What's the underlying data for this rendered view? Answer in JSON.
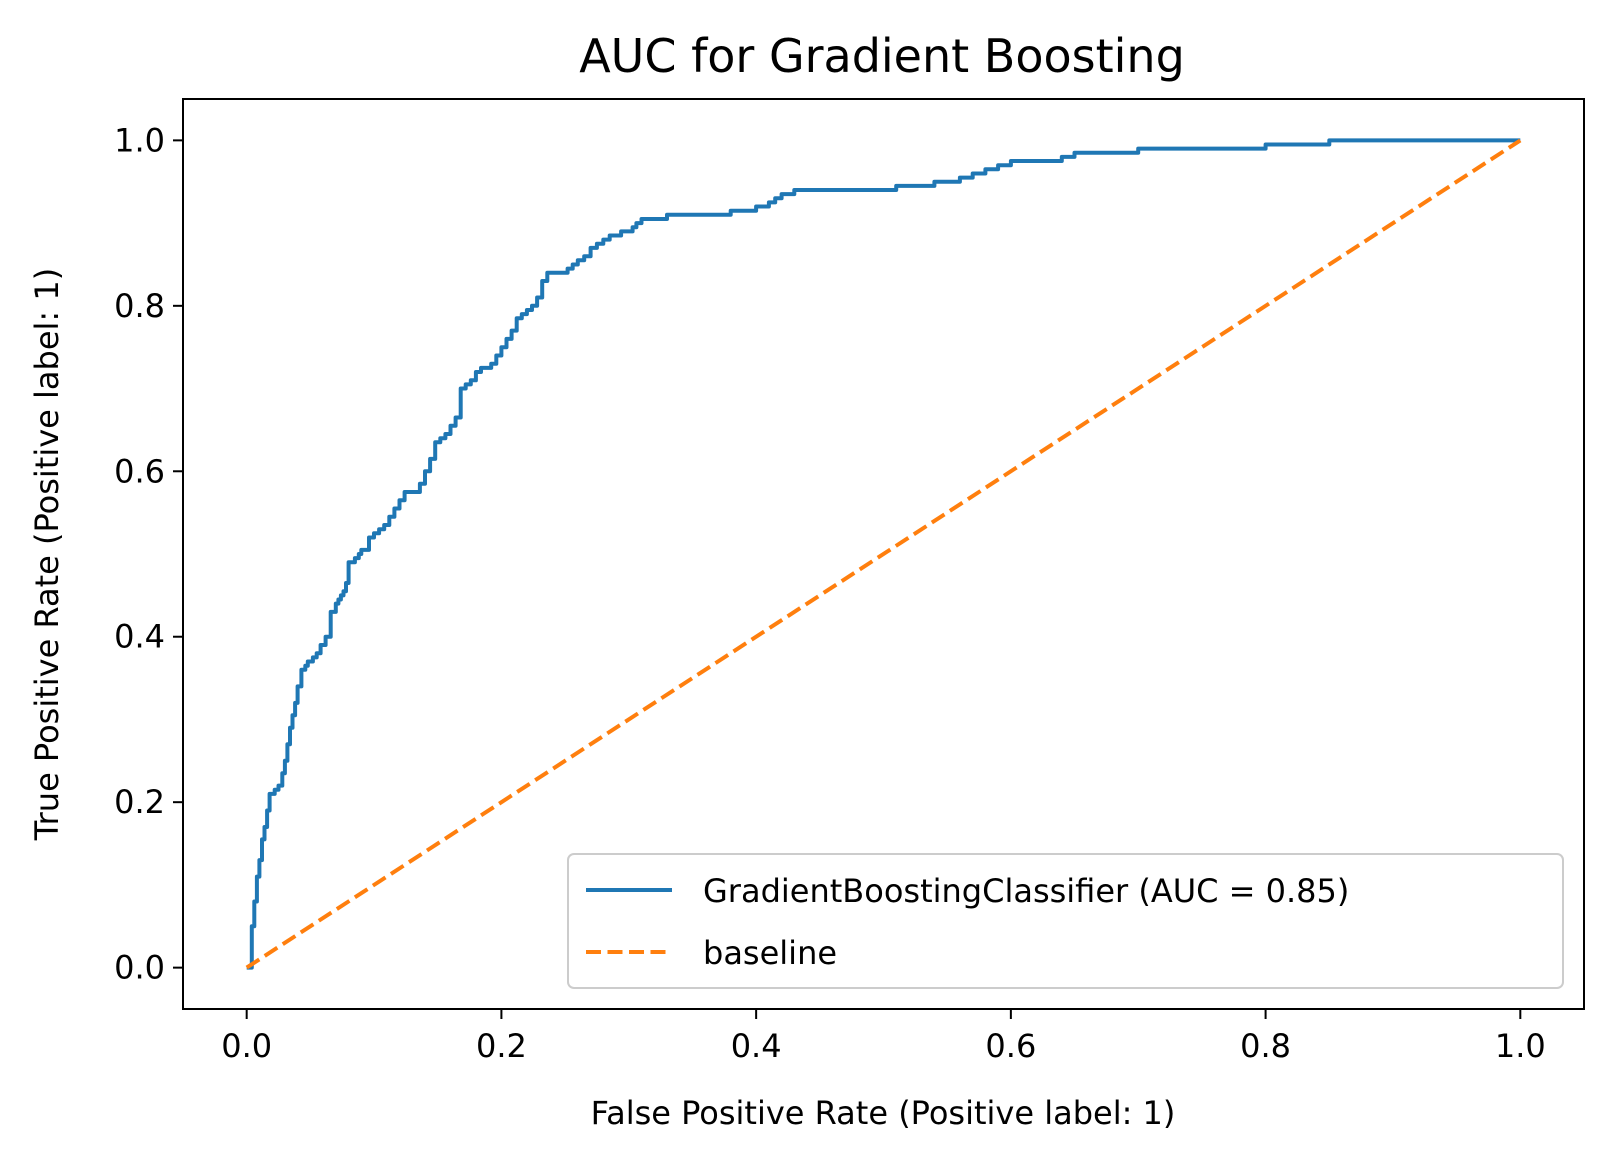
{
  "chart_data": {
    "type": "line",
    "title": "AUC for Gradient Boosting",
    "xlabel": "False Positive Rate (Positive label: 1)",
    "ylabel": "True Positive Rate (Positive label: 1)",
    "xlim": [
      -0.05,
      1.05
    ],
    "ylim": [
      -0.05,
      1.05
    ],
    "xticks": [
      "0.0",
      "0.2",
      "0.4",
      "0.6",
      "0.8",
      "1.0"
    ],
    "yticks": [
      "0.0",
      "0.2",
      "0.4",
      "0.6",
      "0.8",
      "1.0"
    ],
    "grid": false,
    "legend_position": "lower-right",
    "series": [
      {
        "name": "GradientBoostingClassifier (AUC = 0.85)",
        "color": "#1f77b4",
        "dash": "solid",
        "x": [
          0.0,
          0.003,
          0.004,
          0.006,
          0.008,
          0.01,
          0.012,
          0.014,
          0.016,
          0.018,
          0.02,
          0.022,
          0.025,
          0.028,
          0.03,
          0.032,
          0.034,
          0.036,
          0.038,
          0.04,
          0.043,
          0.046,
          0.048,
          0.05,
          0.052,
          0.055,
          0.058,
          0.062,
          0.066,
          0.07,
          0.072,
          0.074,
          0.076,
          0.078,
          0.08,
          0.083,
          0.085,
          0.088,
          0.09,
          0.093,
          0.096,
          0.1,
          0.104,
          0.108,
          0.112,
          0.116,
          0.12,
          0.124,
          0.128,
          0.132,
          0.136,
          0.14,
          0.144,
          0.148,
          0.152,
          0.156,
          0.16,
          0.164,
          0.168,
          0.172,
          0.176,
          0.18,
          0.184,
          0.188,
          0.192,
          0.196,
          0.2,
          0.204,
          0.208,
          0.212,
          0.216,
          0.22,
          0.224,
          0.228,
          0.232,
          0.236,
          0.24,
          0.244,
          0.248,
          0.252,
          0.256,
          0.26,
          0.265,
          0.27,
          0.275,
          0.28,
          0.285,
          0.29,
          0.294,
          0.298,
          0.3,
          0.303,
          0.306,
          0.31,
          0.315,
          0.32,
          0.33,
          0.34,
          0.35,
          0.36,
          0.38,
          0.39,
          0.4,
          0.41,
          0.415,
          0.42,
          0.43,
          0.45,
          0.48,
          0.5,
          0.51,
          0.54,
          0.56,
          0.57,
          0.58,
          0.59,
          0.6,
          0.62,
          0.64,
          0.65,
          0.66,
          0.68,
          0.7,
          0.72,
          0.74,
          0.8,
          0.82,
          0.85,
          0.9,
          0.95,
          1.0
        ],
        "y": [
          0.0,
          0.0,
          0.05,
          0.08,
          0.11,
          0.13,
          0.155,
          0.17,
          0.19,
          0.21,
          0.21,
          0.215,
          0.22,
          0.235,
          0.25,
          0.27,
          0.29,
          0.305,
          0.32,
          0.34,
          0.36,
          0.365,
          0.37,
          0.37,
          0.375,
          0.38,
          0.39,
          0.4,
          0.43,
          0.44,
          0.445,
          0.45,
          0.455,
          0.465,
          0.49,
          0.49,
          0.495,
          0.5,
          0.505,
          0.505,
          0.52,
          0.525,
          0.53,
          0.535,
          0.545,
          0.555,
          0.565,
          0.575,
          0.575,
          0.575,
          0.585,
          0.6,
          0.615,
          0.635,
          0.64,
          0.645,
          0.655,
          0.665,
          0.7,
          0.705,
          0.71,
          0.72,
          0.725,
          0.725,
          0.73,
          0.74,
          0.75,
          0.76,
          0.77,
          0.785,
          0.79,
          0.795,
          0.8,
          0.81,
          0.83,
          0.84,
          0.84,
          0.84,
          0.84,
          0.845,
          0.85,
          0.855,
          0.86,
          0.87,
          0.875,
          0.88,
          0.885,
          0.885,
          0.89,
          0.89,
          0.89,
          0.895,
          0.9,
          0.905,
          0.905,
          0.905,
          0.91,
          0.91,
          0.91,
          0.91,
          0.915,
          0.915,
          0.92,
          0.925,
          0.93,
          0.935,
          0.94,
          0.94,
          0.94,
          0.94,
          0.945,
          0.95,
          0.955,
          0.96,
          0.965,
          0.97,
          0.975,
          0.975,
          0.98,
          0.985,
          0.985,
          0.985,
          0.99,
          0.99,
          0.99,
          0.995,
          0.995,
          1.0,
          1.0,
          1.0,
          1.0
        ]
      },
      {
        "name": "baseline",
        "color": "#ff7f0e",
        "dash": "dashed",
        "x": [
          0.0,
          1.0
        ],
        "y": [
          0.0,
          1.0
        ]
      }
    ]
  }
}
